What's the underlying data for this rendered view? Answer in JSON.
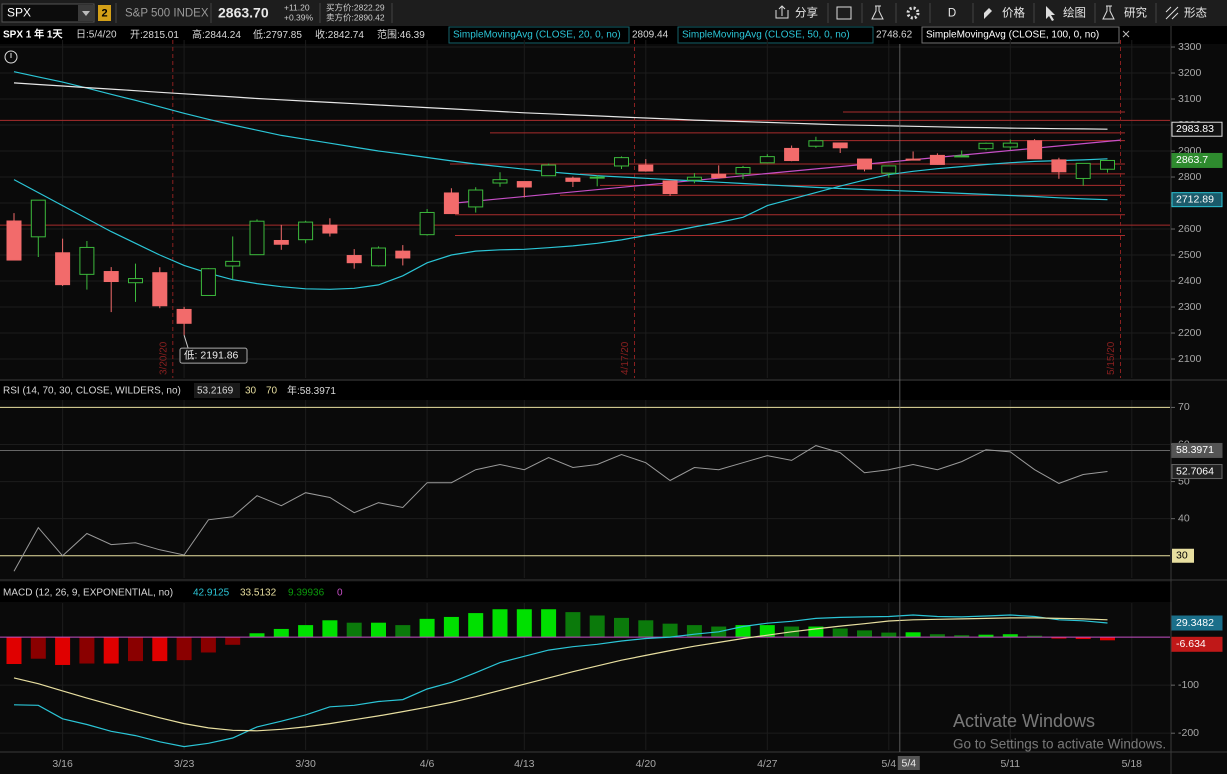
{
  "toolbar": {
    "symbol": "SPX",
    "link": "2",
    "name": "S&P 500 INDEX",
    "last": "2863.70",
    "change": "+11.20",
    "change_pct": "+0.39%",
    "bid": "买方价:2822.29",
    "ask": "卖方价:2890.42",
    "buttons": [
      "分享",
      "D",
      "价格",
      "绘图",
      "研究",
      "形态"
    ]
  },
  "watermark": {
    "title": "Activate Windows",
    "text": "Go to Settings to activate Windows."
  },
  "chart_data": [
    {
      "type": "candlestick",
      "title": "SPX 1 年 1天",
      "date_label": "日:5/4/20",
      "info_labels": [
        "开:",
        "高:",
        "低:",
        "收:",
        "范围:"
      ],
      "range": 46.39,
      "up_color": "#3cb93c",
      "down_color": "#f26b6b",
      "open": [
        2630.86,
        2569.99,
        2508.59,
        2425.66,
        2436.5,
        2393.48,
        2431.94,
        2290.71,
        2344.44,
        2457.77,
        2501.29,
        2555.87,
        2558.98,
        2614.69,
        2498.08,
        2458.54,
        2514.92,
        2578.28,
        2738.65,
        2685,
        2776.99,
        2782.46,
        2805.1,
        2795.64,
        2799.34,
        2842.43,
        2845.62,
        2784.81,
        2787.89,
        2810.42,
        2812.64,
        2854.65,
        2909.96,
        2918.46,
        2930.91,
        2869.09,
        2815.01,
        2868.88,
        2883.14,
        2878.26,
        2908.83,
        2915.46,
        2939.5,
        2865.86,
        2794.54,
        2829.95,
        null
      ],
      "high": [
        2660.95,
        2711.33,
        2562.98,
        2553.93,
        2453.57,
        2466.97,
        2453.01,
        2300.73,
        2449.71,
        2571.42,
        2637.01,
        2615.91,
        2631.8,
        2641.39,
        2522.75,
        2533.22,
        2538.18,
        2676.85,
        2756.89,
        2760.75,
        2818.57,
        2782.46,
        2851.85,
        2801.88,
        2806.51,
        2879.22,
        2868.98,
        2785.54,
        2815.1,
        2844.9,
        2842.71,
        2887.72,
        2921.15,
        2954.86,
        2930.91,
        2869.09,
        2844.24,
        2898.23,
        2891.11,
        2901.92,
        2932.16,
        2944.25,
        2945.82,
        2874.14,
        2852.8,
        2865.01,
        null
      ],
      "low": [
        2478.86,
        2492.37,
        2380.94,
        2367.04,
        2280.52,
        2319.78,
        2295.56,
        2191.86,
        2344.44,
        2407.53,
        2500.72,
        2520.02,
        2545.28,
        2571.15,
        2447.49,
        2455.79,
        2459.96,
        2574.57,
        2657.67,
        2663.3,
        2762.36,
        2721.17,
        2805.1,
        2761.54,
        2764.32,
        2830.88,
        2820.43,
        2727.1,
        2775.95,
        2794.26,
        2791.76,
        2852.89,
        2860.71,
        2912.16,
        2892.47,
        2821.61,
        2797.85,
        2863.55,
        2847.65,
        2876.48,
        2902.88,
        2903.44,
        2869.59,
        2793.15,
        2766.64,
        2816.78,
        null
      ],
      "close": [
        2480.64,
        2711.02,
        2386.13,
        2529.19,
        2398.1,
        2409.39,
        2304.92,
        2237.4,
        2447.33,
        2475.56,
        2630.07,
        2541.47,
        2626.65,
        2584.59,
        2470.5,
        2526.9,
        2488.65,
        2663.68,
        2659.41,
        2749.98,
        2789.82,
        2761.63,
        2846.06,
        2783.36,
        2799.55,
        2874.56,
        2823.16,
        2736.56,
        2799.31,
        2797.8,
        2836.74,
        2878.48,
        2863.39,
        2939.51,
        2912.43,
        2830.71,
        2842.74,
        2868.44,
        2848.42,
        2881.19,
        2929.8,
        2930.32,
        2870.12,
        2820,
        2852.5,
        2863.7,
        null
      ],
      "series": [
        {
          "name": "SimpleMovingAvg (CLOSE, 20, 0, no)",
          "color": "#2bc5d6",
          "values": [
            2790,
            2740,
            2690,
            2640,
            2590,
            2545,
            2500,
            2460,
            2430,
            2405,
            2390,
            2378,
            2370,
            2368,
            2372,
            2385,
            2420,
            2470,
            2500,
            2515,
            2520,
            2522,
            2528,
            2535,
            2545,
            2558,
            2575,
            2590,
            2608,
            2625,
            2645,
            2690,
            2715,
            2740,
            2765,
            2788,
            2809.44,
            2822,
            2832,
            2840,
            2848,
            2855,
            2860,
            2863,
            2866,
            2870,
            null
          ]
        },
        {
          "name": "SimpleMovingAvg (CLOSE, 50, 0, no)",
          "color": "#2bc5d6",
          "values": [
            3205,
            3185,
            3165,
            3142,
            3118,
            3095,
            3070,
            3045,
            3022,
            3000,
            2980,
            2960,
            2945,
            2930,
            2915,
            2900,
            2888,
            2875,
            2862,
            2850,
            2840,
            2830,
            2820,
            2812,
            2805,
            2800,
            2795,
            2790,
            2785,
            2780,
            2775,
            2770,
            2765,
            2760,
            2756,
            2752,
            2748.62,
            2745,
            2741,
            2737,
            2733,
            2729,
            2725,
            2720,
            2716,
            2712.89,
            null
          ]
        },
        {
          "name": "SimpleMovingAvg (CLOSE, 100, 0, no)",
          "color": "#e6e6e6",
          "values": [
            3162,
            3156,
            3150,
            3144,
            3138,
            3132,
            3126,
            3120,
            3114,
            3108,
            3102,
            3097,
            3092,
            3087,
            3082,
            3077,
            3072,
            3067,
            3062,
            3057,
            3052,
            3047,
            3043,
            3039,
            3035,
            3031,
            3027,
            3023,
            3019,
            3016,
            3013,
            3010,
            3007,
            3004,
            3001,
            2999,
            2997,
            2995,
            2993,
            2991,
            2990,
            2988,
            2987,
            2986,
            2985,
            2983.83,
            null
          ]
        }
      ],
      "price_levels": [
        3018,
        3050,
        2970,
        2940,
        2850,
        2812,
        2768,
        2730,
        2655,
        2575,
        2615
      ],
      "trendline": {
        "color": "#c64fc6",
        "values": [
          2700,
          2942
        ]
      },
      "expiry_markers": [
        "3/20/20",
        "4/17/20",
        "5/15/20"
      ],
      "ylim": [
        2027,
        3327
      ],
      "yticks": [
        2100,
        2200,
        2300,
        2400,
        2500,
        2600,
        2700,
        2800,
        2900,
        3000,
        3100,
        3200,
        3300
      ],
      "grid": true
    },
    {
      "type": "line",
      "title": "RSI (14, 70, 30, CLOSE, WILDERS, no)",
      "color": "#9a9a9a",
      "values": [
        25.8,
        37.6,
        30,
        36,
        33,
        33.5,
        31.6,
        30.2,
        39.7,
        40.5,
        46.2,
        43.5,
        47,
        45.7,
        41.6,
        44.3,
        43,
        49.7,
        49.7,
        53.2,
        54.6,
        53.2,
        56.5,
        53.8,
        54.6,
        57.3,
        55.1,
        50.3,
        53.8,
        53.2,
        55.1,
        57,
        55.7,
        59.7,
        57.8,
        52.4,
        53.2169,
        54.6,
        53.2,
        55.4,
        58.6,
        58,
        53.2,
        49.5,
        51.9,
        52.7064,
        null
      ],
      "levels": [
        30,
        70
      ],
      "level_color": "#e8dfa0",
      "year_label": "年:",
      "year_value": 58.3971,
      "ylim": [
        24,
        72
      ],
      "yticks": [
        40,
        50,
        60,
        70
      ],
      "grid": true
    },
    {
      "type": "bar",
      "title": "MACD (12, 26, 9, EXPONENTIAL, no)",
      "categories": [
        null,
        null,
        "3/16",
        null,
        null,
        null,
        null,
        "3/23",
        null,
        null,
        null,
        null,
        "3/30",
        null,
        null,
        null,
        null,
        "4/6",
        null,
        null,
        null,
        "4/13",
        null,
        null,
        null,
        null,
        "4/20",
        null,
        null,
        null,
        null,
        "4/27",
        null,
        null,
        null,
        null,
        "5/4",
        null,
        null,
        null,
        null,
        "5/11",
        null,
        null,
        null,
        null,
        "5/18"
      ],
      "values": [
        -56,
        -45,
        -58,
        -55,
        -55,
        -50,
        -50,
        -48,
        -32,
        -16,
        8,
        17,
        25,
        35,
        30,
        30,
        25,
        38,
        42,
        50,
        58,
        58,
        58,
        52,
        45,
        40,
        35,
        28,
        25,
        22,
        25,
        25,
        22,
        22,
        18,
        14,
        9.39936,
        10,
        6,
        4,
        5,
        6,
        3,
        -3,
        -4,
        -6.634,
        null
      ],
      "bar_colors": [
        "#00e000",
        "#0b7a0b",
        "#e00000",
        "#8a0000"
      ],
      "series": [
        {
          "color": "#2bc5d6",
          "values": [
            -141,
            -142,
            -170,
            -182,
            -196,
            -205,
            -218,
            -228,
            -221,
            -210,
            -187,
            -175,
            -162,
            -145,
            -142,
            -134,
            -130,
            -108,
            -94,
            -74,
            -53,
            -40,
            -27,
            -20,
            -15,
            -8,
            -3,
            0,
            6,
            11,
            22,
            29,
            33,
            39,
            41,
            42,
            42.9125,
            46,
            43,
            42,
            44,
            46,
            43,
            36,
            34,
            29.3482,
            null
          ]
        },
        {
          "color": "#e8dfa0",
          "values": [
            -85,
            -97,
            -112,
            -127,
            -141,
            -155,
            -168,
            -180,
            -189,
            -194,
            -195,
            -192,
            -187,
            -180,
            -172,
            -164,
            -155,
            -146,
            -136,
            -124,
            -111,
            -98,
            -85,
            -72,
            -60,
            -48,
            -38,
            -28,
            -19,
            -11,
            -3,
            4,
            11,
            17,
            23,
            28,
            33.5132,
            36,
            37,
            38,
            39,
            40,
            40,
            39,
            38,
            35.98,
            null
          ]
        }
      ],
      "zero_line": 0,
      "zero_color": "#c64fc6",
      "ylim": [
        -235,
        71
      ],
      "yticks": [
        -200,
        -100
      ],
      "grid": true
    }
  ]
}
